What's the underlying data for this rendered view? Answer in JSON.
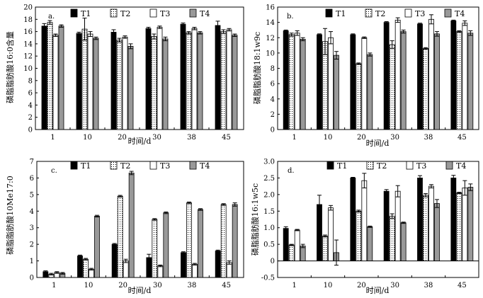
{
  "figure": {
    "xlabel": "时间/d",
    "categories": [
      "1",
      "10",
      "20",
      "30",
      "38",
      "45"
    ],
    "series_names": [
      "T1",
      "T2",
      "T3",
      "T4"
    ],
    "series_styles": [
      {
        "fill": "#000000",
        "pattern": "solid"
      },
      {
        "fill": "#ffffff",
        "pattern": "dots"
      },
      {
        "fill": "#ffffff",
        "pattern": "none"
      },
      {
        "fill": "#999999",
        "pattern": "solid"
      }
    ]
  },
  "chart_data": [
    {
      "type": "bar",
      "panel": "a.",
      "ylabel": "磷脂脂肪酸16:0含量",
      "categories": [
        "1",
        "10",
        "20",
        "30",
        "38",
        "45"
      ],
      "ylim": [
        0,
        20
      ],
      "yticks": [
        "0",
        "2",
        "4",
        "6",
        "8",
        "10",
        "12",
        "14",
        "16",
        "18",
        "20"
      ],
      "series": [
        {
          "name": "T1",
          "values": [
            16.9,
            15.7,
            15.9,
            16.5,
            17.2,
            17.0
          ],
          "errors": [
            0.4,
            0.2,
            0.4,
            0.2,
            0.2,
            0.7
          ]
        },
        {
          "name": "T2",
          "values": [
            17.5,
            16.4,
            14.6,
            15.2,
            15.8,
            16.0
          ],
          "errors": [
            0.3,
            1.8,
            0.3,
            0.4,
            0.2,
            0.3
          ]
        },
        {
          "name": "T3",
          "values": [
            15.4,
            15.6,
            15.1,
            16.7,
            16.5,
            16.3
          ],
          "errors": [
            0.2,
            0.4,
            0.2,
            0.2,
            0.2,
            0.2
          ]
        },
        {
          "name": "T4",
          "values": [
            16.9,
            14.9,
            13.6,
            14.8,
            15.8,
            15.4
          ],
          "errors": [
            0.2,
            0.2,
            0.4,
            0.3,
            0.2,
            0.2
          ]
        }
      ]
    },
    {
      "type": "bar",
      "panel": "b.",
      "ylabel": "磷脂脂肪酸18:1w9c",
      "categories": [
        "1",
        "10",
        "20",
        "30",
        "38",
        "45"
      ],
      "ylim": [
        0,
        16
      ],
      "yticks": [
        "0",
        "2",
        "4",
        "6",
        "8",
        "10",
        "12",
        "14",
        "16"
      ],
      "series": [
        {
          "name": "T1",
          "values": [
            12.9,
            12.4,
            12.4,
            14.0,
            13.8,
            14.2
          ],
          "errors": [
            0.1,
            0.1,
            0.1,
            0.1,
            0.1,
            0.1
          ]
        },
        {
          "name": "T2",
          "values": [
            12.4,
            11.5,
            8.6,
            11.1,
            10.6,
            12.8
          ],
          "errors": [
            0.2,
            1.7,
            0.1,
            0.5,
            0.1,
            0.1
          ]
        },
        {
          "name": "T3",
          "values": [
            12.6,
            12.0,
            12.0,
            14.3,
            14.4,
            13.9
          ],
          "errors": [
            0.3,
            0.8,
            0.1,
            0.3,
            0.6,
            0.3
          ]
        },
        {
          "name": "T4",
          "values": [
            11.8,
            9.7,
            9.8,
            12.8,
            12.5,
            12.6
          ],
          "errors": [
            0.2,
            0.5,
            0.2,
            0.2,
            0.3,
            0.3
          ]
        }
      ]
    },
    {
      "type": "bar",
      "panel": "c.",
      "ylabel": "磷脂脂肪酸10Me17:0",
      "categories": [
        "1",
        "10",
        "20",
        "30",
        "38",
        "45"
      ],
      "ylim": [
        0,
        7
      ],
      "yticks": [
        "0",
        "1",
        "2",
        "3",
        "4",
        "5",
        "6",
        "7"
      ],
      "series": [
        {
          "name": "T1",
          "values": [
            0.35,
            1.3,
            2.0,
            1.2,
            1.5,
            1.6
          ],
          "errors": [
            0.05,
            0.05,
            0.05,
            0.2,
            0.05,
            0.05
          ]
        },
        {
          "name": "T2",
          "values": [
            0.2,
            1.1,
            4.9,
            3.5,
            4.5,
            4.4
          ],
          "errors": [
            0.05,
            0.05,
            0.05,
            0.05,
            0.05,
            0.05
          ]
        },
        {
          "name": "T3",
          "values": [
            0.3,
            0.5,
            1.0,
            0.7,
            0.8,
            0.9
          ],
          "errors": [
            0.05,
            0.05,
            0.1,
            0.05,
            0.05,
            0.1
          ]
        },
        {
          "name": "T4",
          "values": [
            0.25,
            3.7,
            6.3,
            3.9,
            4.1,
            4.4
          ],
          "errors": [
            0.05,
            0.05,
            0.1,
            0.05,
            0.05,
            0.1
          ]
        }
      ]
    },
    {
      "type": "bar",
      "panel": "d.",
      "ylabel": "磷脂脂肪酸16:1w5c",
      "categories": [
        "1",
        "10",
        "20",
        "30",
        "38",
        "45"
      ],
      "ylim": [
        -0.5,
        3.0
      ],
      "yticks": [
        "-0.5",
        "0",
        "0.5",
        "1.0",
        "1.5",
        "2.0",
        "2.5",
        "3.0"
      ],
      "series": [
        {
          "name": "T1",
          "values": [
            0.98,
            1.7,
            2.5,
            2.1,
            2.5,
            2.5
          ],
          "errors": [
            0.05,
            0.28,
            0.02,
            0.05,
            0.07,
            0.08
          ]
        },
        {
          "name": "T2",
          "values": [
            0.48,
            0.75,
            1.5,
            1.35,
            1.98,
            2.05
          ],
          "errors": [
            0.02,
            0.03,
            0.03,
            0.07,
            0.05,
            0.02
          ]
        },
        {
          "name": "T3",
          "values": [
            0.93,
            1.6,
            2.42,
            2.1,
            2.25,
            2.2
          ],
          "errors": [
            0.02,
            0.07,
            0.22,
            0.17,
            0.05,
            0.22
          ]
        },
        {
          "name": "T4",
          "values": [
            0.45,
            0.25,
            1.03,
            1.15,
            1.73,
            2.22
          ],
          "errors": [
            0.05,
            0.38,
            0.02,
            0.02,
            0.12,
            0.1
          ]
        }
      ]
    }
  ]
}
